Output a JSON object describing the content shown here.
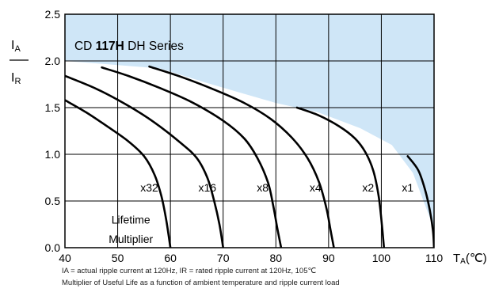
{
  "chart_data": {
    "type": "line",
    "title": "CD 117H DH Series",
    "ylabel_top": "I",
    "ylabel_top_sub": "A",
    "ylabel_bottom": "I",
    "ylabel_bottom_sub": "R",
    "xlabel": "T",
    "xlabel_sub": "A",
    "xlabel_unit": "(℃)",
    "xlim": [
      40,
      110
    ],
    "ylim": [
      0,
      2.5
    ],
    "x_ticks": [
      40,
      50,
      60,
      70,
      80,
      90,
      100,
      110
    ],
    "y_ticks": [
      "0.0",
      "0.5",
      "1.0",
      "1.5",
      "2.0",
      "2.5"
    ],
    "grid": true,
    "colors": {
      "shaded": "#cfe6f7",
      "curve": "#000000",
      "grid": "#000000"
    },
    "shaded_region_boundary": [
      [
        40,
        2.0
      ],
      [
        58,
        1.92
      ],
      [
        66,
        1.78
      ],
      [
        72,
        1.68
      ],
      [
        80,
        1.55
      ],
      [
        88,
        1.45
      ],
      [
        96,
        1.28
      ],
      [
        102,
        1.1
      ],
      [
        106,
        0.8
      ],
      [
        108,
        0.5
      ],
      [
        110,
        0.2
      ]
    ],
    "multiplier_label": [
      "Lifetime",
      "Multiplier"
    ],
    "series": [
      {
        "name": "x32",
        "label_pos": [
          56,
          0.6
        ],
        "points": [
          [
            40,
            1.58
          ],
          [
            44,
            1.45
          ],
          [
            48,
            1.3
          ],
          [
            52,
            1.14
          ],
          [
            55,
            0.98
          ],
          [
            57,
            0.78
          ],
          [
            58.3,
            0.55
          ],
          [
            59.2,
            0.3
          ],
          [
            60,
            0.0
          ]
        ]
      },
      {
        "name": "x16",
        "label_pos": [
          67,
          0.6
        ],
        "points": [
          [
            40,
            1.84
          ],
          [
            46,
            1.7
          ],
          [
            52,
            1.52
          ],
          [
            57,
            1.34
          ],
          [
            62,
            1.12
          ],
          [
            65,
            0.96
          ],
          [
            67,
            0.75
          ],
          [
            68.3,
            0.5
          ],
          [
            69.3,
            0.25
          ],
          [
            70,
            0.0
          ]
        ]
      },
      {
        "name": "x8",
        "label_pos": [
          77.5,
          0.6
        ],
        "points": [
          [
            47,
            1.93
          ],
          [
            52,
            1.84
          ],
          [
            58,
            1.71
          ],
          [
            64,
            1.56
          ],
          [
            70,
            1.36
          ],
          [
            74,
            1.17
          ],
          [
            76.5,
            0.96
          ],
          [
            78.5,
            0.7
          ],
          [
            79.5,
            0.45
          ],
          [
            80.3,
            0.2
          ],
          [
            81,
            0.0
          ]
        ]
      },
      {
        "name": "x4",
        "label_pos": [
          87.5,
          0.6
        ],
        "points": [
          [
            56,
            1.94
          ],
          [
            62,
            1.83
          ],
          [
            68,
            1.7
          ],
          [
            74,
            1.55
          ],
          [
            79,
            1.38
          ],
          [
            83,
            1.18
          ],
          [
            86,
            0.96
          ],
          [
            88.2,
            0.7
          ],
          [
            89.6,
            0.42
          ],
          [
            90.4,
            0.18
          ],
          [
            91,
            0.0
          ]
        ]
      },
      {
        "name": "x2",
        "label_pos": [
          97.5,
          0.6
        ],
        "points": [
          [
            84,
            1.5
          ],
          [
            88,
            1.42
          ],
          [
            92,
            1.3
          ],
          [
            95,
            1.17
          ],
          [
            97,
            1.02
          ],
          [
            98.5,
            0.82
          ],
          [
            99.5,
            0.55
          ],
          [
            100.1,
            0.25
          ],
          [
            100.5,
            0.0
          ]
        ]
      },
      {
        "name": "x1",
        "label_pos": [
          105,
          0.6
        ],
        "points": [
          [
            105,
            0.98
          ],
          [
            107,
            0.83
          ],
          [
            108.3,
            0.62
          ],
          [
            109.2,
            0.4
          ],
          [
            109.8,
            0.18
          ],
          [
            110,
            0.0
          ]
        ]
      }
    ]
  },
  "notes": {
    "line1": "IA = actual ripple current at 120Hz, IR = rated ripple current at 120Hz, 105℃",
    "line2": "Multiplier of Useful Life as a function of ambient temperature and ripple current load"
  }
}
